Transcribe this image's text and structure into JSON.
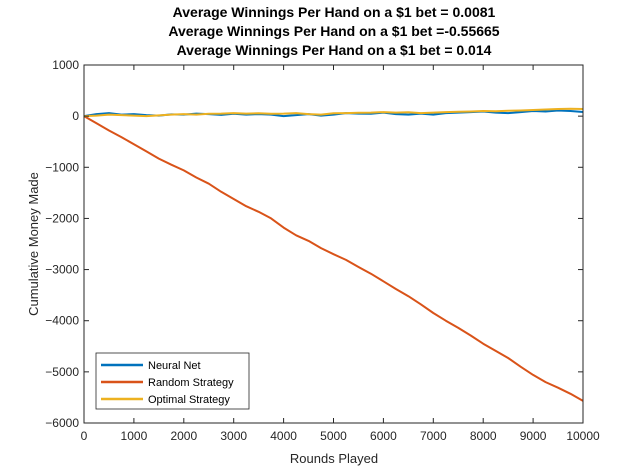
{
  "chart_data": {
    "type": "line",
    "title_lines": [
      "Average Winnings Per Hand on a $1 bet =  0.0081",
      "Average Winnings Per Hand on a $1 bet =-0.55665",
      "Average Winnings Per Hand on a $1 bet =   0.014"
    ],
    "xlabel": "Rounds Played",
    "ylabel": "Cumulative Money Made",
    "xlim": [
      0,
      10000
    ],
    "ylim": [
      -6000,
      1000
    ],
    "xticks": [
      0,
      1000,
      2000,
      3000,
      4000,
      5000,
      6000,
      7000,
      8000,
      9000,
      10000
    ],
    "yticks": [
      1000,
      0,
      -1000,
      -2000,
      -3000,
      -4000,
      -5000,
      -6000
    ],
    "grid": false,
    "legend_position": "bottom-left",
    "series": [
      {
        "name": "Neural Net",
        "color": "#0072BD",
        "x": [
          0,
          250,
          500,
          750,
          1000,
          1250,
          1500,
          1750,
          2000,
          2250,
          2500,
          2750,
          3000,
          3250,
          3500,
          3750,
          4000,
          4250,
          4500,
          4750,
          5000,
          5250,
          5500,
          5750,
          6000,
          6250,
          6500,
          6750,
          7000,
          7250,
          7500,
          7750,
          8000,
          8250,
          8500,
          8750,
          9000,
          9250,
          9500,
          9750,
          10000
        ],
        "y": [
          0,
          40,
          60,
          30,
          40,
          20,
          10,
          35,
          30,
          50,
          40,
          25,
          45,
          30,
          40,
          30,
          0,
          20,
          40,
          10,
          30,
          60,
          50,
          45,
          70,
          40,
          30,
          50,
          30,
          60,
          70,
          80,
          90,
          70,
          60,
          80,
          100,
          90,
          110,
          100,
          81
        ]
      },
      {
        "name": "Random Strategy",
        "color": "#D95319",
        "x": [
          0,
          250,
          500,
          750,
          1000,
          1250,
          1500,
          1750,
          2000,
          2250,
          2500,
          2750,
          3000,
          3250,
          3500,
          3750,
          4000,
          4250,
          4500,
          4750,
          5000,
          5250,
          5500,
          5750,
          6000,
          6250,
          6500,
          6750,
          7000,
          7250,
          7500,
          7750,
          8000,
          8250,
          8500,
          8750,
          9000,
          9250,
          9500,
          9750,
          10000
        ],
        "y": [
          0,
          -140,
          -280,
          -410,
          -550,
          -690,
          -830,
          -950,
          -1060,
          -1200,
          -1320,
          -1480,
          -1620,
          -1760,
          -1870,
          -2000,
          -2180,
          -2330,
          -2440,
          -2580,
          -2700,
          -2810,
          -2950,
          -3080,
          -3230,
          -3380,
          -3520,
          -3680,
          -3850,
          -4000,
          -4140,
          -4290,
          -4450,
          -4590,
          -4730,
          -4900,
          -5060,
          -5200,
          -5310,
          -5430,
          -5567
        ]
      },
      {
        "name": "Optimal Strategy",
        "color": "#EDB120",
        "x": [
          0,
          250,
          500,
          750,
          1000,
          1250,
          1500,
          1750,
          2000,
          2250,
          2500,
          2750,
          3000,
          3250,
          3500,
          3750,
          4000,
          4250,
          4500,
          4750,
          5000,
          5250,
          5500,
          5750,
          6000,
          6250,
          6500,
          6750,
          7000,
          7250,
          7500,
          7750,
          8000,
          8250,
          8500,
          8750,
          9000,
          9250,
          9500,
          9750,
          10000
        ],
        "y": [
          0,
          10,
          30,
          20,
          10,
          0,
          15,
          30,
          40,
          30,
          45,
          50,
          60,
          50,
          55,
          45,
          50,
          60,
          40,
          30,
          55,
          60,
          65,
          70,
          80,
          70,
          75,
          60,
          70,
          80,
          85,
          90,
          100,
          95,
          105,
          110,
          120,
          130,
          140,
          145,
          140
        ]
      }
    ]
  }
}
